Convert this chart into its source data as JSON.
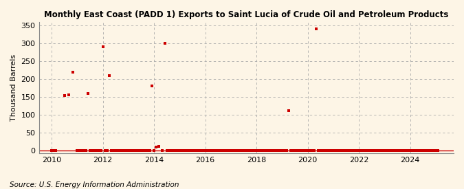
{
  "title": "Monthly East Coast (PADD 1) Exports to Saint Lucia of Crude Oil and Petroleum Products",
  "ylabel": "Thousand Barrels",
  "source": "Source: U.S. Energy Information Administration",
  "background_color": "#fdf5e6",
  "marker_color": "#cc0000",
  "xlim": [
    2009.5,
    2025.7
  ],
  "ylim": [
    -8,
    360
  ],
  "yticks": [
    0,
    50,
    100,
    150,
    200,
    250,
    300,
    350
  ],
  "xticks": [
    2010,
    2012,
    2014,
    2016,
    2018,
    2020,
    2022,
    2024
  ],
  "data_points": [
    [
      2010.0,
      0
    ],
    [
      2010.08,
      0
    ],
    [
      2010.17,
      0
    ],
    [
      2010.5,
      153
    ],
    [
      2010.67,
      155
    ],
    [
      2010.83,
      220
    ],
    [
      2011.0,
      0
    ],
    [
      2011.08,
      0
    ],
    [
      2011.17,
      0
    ],
    [
      2011.25,
      0
    ],
    [
      2011.33,
      0
    ],
    [
      2011.42,
      160
    ],
    [
      2011.5,
      0
    ],
    [
      2011.58,
      0
    ],
    [
      2011.67,
      0
    ],
    [
      2011.75,
      0
    ],
    [
      2011.83,
      0
    ],
    [
      2011.92,
      0
    ],
    [
      2012.0,
      290
    ],
    [
      2012.08,
      0
    ],
    [
      2012.17,
      0
    ],
    [
      2012.25,
      210
    ],
    [
      2012.33,
      0
    ],
    [
      2012.42,
      0
    ],
    [
      2012.5,
      0
    ],
    [
      2012.58,
      0
    ],
    [
      2012.67,
      0
    ],
    [
      2012.75,
      0
    ],
    [
      2012.83,
      0
    ],
    [
      2012.92,
      0
    ],
    [
      2013.0,
      0
    ],
    [
      2013.08,
      0
    ],
    [
      2013.17,
      0
    ],
    [
      2013.25,
      0
    ],
    [
      2013.33,
      0
    ],
    [
      2013.42,
      0
    ],
    [
      2013.5,
      0
    ],
    [
      2013.58,
      0
    ],
    [
      2013.67,
      0
    ],
    [
      2013.75,
      0
    ],
    [
      2013.83,
      0
    ],
    [
      2013.92,
      180
    ],
    [
      2014.0,
      0
    ],
    [
      2014.08,
      10
    ],
    [
      2014.17,
      12
    ],
    [
      2014.33,
      0
    ],
    [
      2014.42,
      300
    ],
    [
      2014.5,
      0
    ],
    [
      2014.58,
      0
    ],
    [
      2014.67,
      0
    ],
    [
      2014.75,
      0
    ],
    [
      2014.83,
      0
    ],
    [
      2014.92,
      0
    ],
    [
      2015.0,
      0
    ],
    [
      2015.08,
      0
    ],
    [
      2015.17,
      0
    ],
    [
      2015.25,
      0
    ],
    [
      2015.33,
      0
    ],
    [
      2015.42,
      0
    ],
    [
      2015.5,
      0
    ],
    [
      2015.58,
      0
    ],
    [
      2015.67,
      0
    ],
    [
      2015.75,
      0
    ],
    [
      2015.83,
      0
    ],
    [
      2015.92,
      0
    ],
    [
      2016.0,
      0
    ],
    [
      2016.08,
      0
    ],
    [
      2016.17,
      0
    ],
    [
      2016.25,
      0
    ],
    [
      2016.33,
      0
    ],
    [
      2016.42,
      0
    ],
    [
      2016.5,
      0
    ],
    [
      2016.58,
      0
    ],
    [
      2016.67,
      0
    ],
    [
      2016.75,
      0
    ],
    [
      2016.83,
      0
    ],
    [
      2016.92,
      0
    ],
    [
      2017.0,
      0
    ],
    [
      2017.08,
      0
    ],
    [
      2017.17,
      0
    ],
    [
      2017.25,
      0
    ],
    [
      2017.33,
      0
    ],
    [
      2017.42,
      0
    ],
    [
      2017.5,
      0
    ],
    [
      2017.58,
      0
    ],
    [
      2017.67,
      0
    ],
    [
      2017.75,
      0
    ],
    [
      2017.83,
      0
    ],
    [
      2017.92,
      0
    ],
    [
      2018.0,
      0
    ],
    [
      2018.08,
      0
    ],
    [
      2018.17,
      0
    ],
    [
      2018.25,
      0
    ],
    [
      2018.33,
      0
    ],
    [
      2018.42,
      0
    ],
    [
      2018.5,
      0
    ],
    [
      2018.58,
      0
    ],
    [
      2018.67,
      0
    ],
    [
      2018.75,
      0
    ],
    [
      2018.83,
      0
    ],
    [
      2018.92,
      0
    ],
    [
      2019.0,
      0
    ],
    [
      2019.08,
      0
    ],
    [
      2019.17,
      0
    ],
    [
      2019.25,
      112
    ],
    [
      2019.33,
      0
    ],
    [
      2019.42,
      0
    ],
    [
      2019.5,
      0
    ],
    [
      2019.58,
      0
    ],
    [
      2019.67,
      0
    ],
    [
      2019.75,
      0
    ],
    [
      2019.83,
      0
    ],
    [
      2019.92,
      0
    ],
    [
      2020.0,
      0
    ],
    [
      2020.08,
      0
    ],
    [
      2020.17,
      0
    ],
    [
      2020.25,
      0
    ],
    [
      2020.33,
      340
    ],
    [
      2020.42,
      0
    ],
    [
      2020.5,
      0
    ],
    [
      2020.58,
      0
    ],
    [
      2020.67,
      0
    ],
    [
      2020.75,
      0
    ],
    [
      2020.83,
      0
    ],
    [
      2020.92,
      0
    ],
    [
      2021.0,
      0
    ],
    [
      2021.08,
      0
    ],
    [
      2021.17,
      0
    ],
    [
      2021.25,
      0
    ],
    [
      2021.33,
      0
    ],
    [
      2021.42,
      0
    ],
    [
      2021.5,
      0
    ],
    [
      2021.58,
      0
    ],
    [
      2021.67,
      0
    ],
    [
      2021.75,
      0
    ],
    [
      2021.83,
      0
    ],
    [
      2021.92,
      0
    ],
    [
      2022.0,
      0
    ],
    [
      2022.08,
      0
    ],
    [
      2022.17,
      0
    ],
    [
      2022.25,
      0
    ],
    [
      2022.33,
      0
    ],
    [
      2022.42,
      0
    ],
    [
      2022.5,
      0
    ],
    [
      2022.58,
      0
    ],
    [
      2022.67,
      0
    ],
    [
      2022.75,
      0
    ],
    [
      2022.83,
      0
    ],
    [
      2022.92,
      0
    ],
    [
      2023.0,
      0
    ],
    [
      2023.08,
      0
    ],
    [
      2023.17,
      0
    ],
    [
      2023.25,
      0
    ],
    [
      2023.33,
      0
    ],
    [
      2023.42,
      0
    ],
    [
      2023.5,
      0
    ],
    [
      2023.58,
      0
    ],
    [
      2023.67,
      0
    ],
    [
      2023.75,
      0
    ],
    [
      2023.83,
      0
    ],
    [
      2023.92,
      0
    ],
    [
      2024.0,
      0
    ],
    [
      2024.08,
      0
    ],
    [
      2024.17,
      0
    ],
    [
      2024.25,
      0
    ],
    [
      2024.33,
      0
    ],
    [
      2024.42,
      0
    ],
    [
      2024.5,
      0
    ],
    [
      2024.58,
      0
    ],
    [
      2024.67,
      0
    ],
    [
      2024.75,
      0
    ],
    [
      2024.83,
      0
    ],
    [
      2024.92,
      0
    ],
    [
      2025.0,
      0
    ],
    [
      2025.08,
      0
    ]
  ]
}
